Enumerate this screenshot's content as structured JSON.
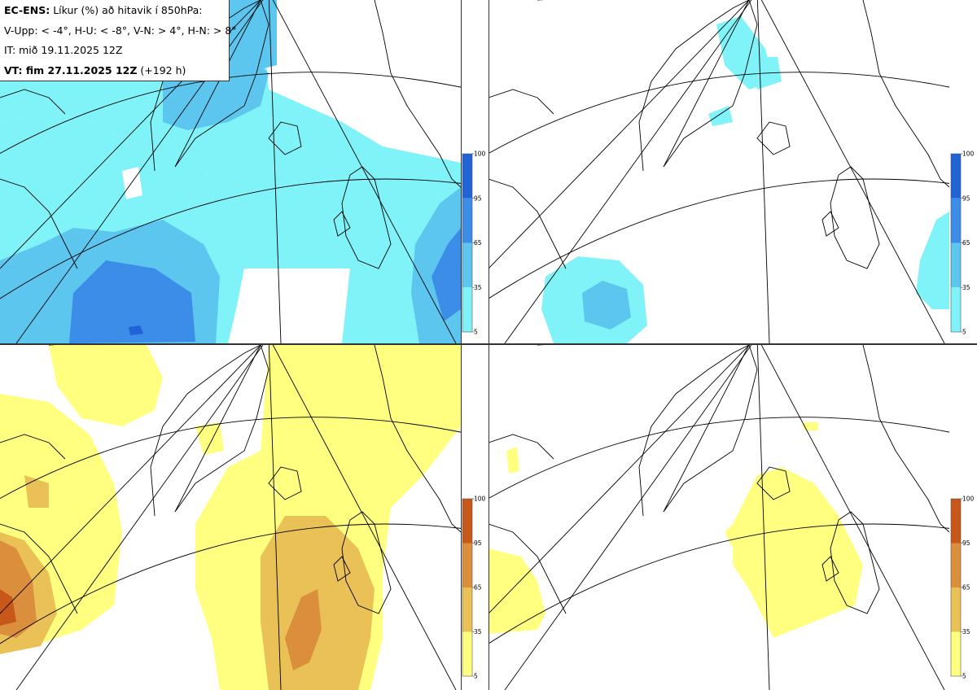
{
  "info": {
    "model": "EC-ENS:",
    "title_rest": "Líkur (%) að hitavik í 850hPa:",
    "thresholds": "V-Upp: < -4°, H-U: < -8°, V-N: > 4°, H-N: > 8°",
    "initial_time": "IT: mið 19.11.2025 12Z",
    "valid_label": "VT: fim 27.11.2025 12Z",
    "lead": "(+192 h)"
  },
  "legend_cold": {
    "ticks": [
      "100",
      "95",
      "65",
      "35",
      "5"
    ],
    "colors": [
      "#1f63d6",
      "#3b8de8",
      "#5cc6ef",
      "#7ff3f7"
    ]
  },
  "legend_warm": {
    "ticks": [
      "100",
      "95",
      "65",
      "35",
      "5"
    ],
    "colors": [
      "#c8571a",
      "#db8e3c",
      "#e9c156",
      "#ffff80"
    ]
  },
  "colors": {
    "cold_levels": [
      "#7ff3f7",
      "#5cc6ef",
      "#3b8de8",
      "#1f63d6"
    ],
    "warm_levels": [
      "#ffff80",
      "#e9c156",
      "#db8e3c",
      "#c8571a"
    ],
    "coast": "#000000",
    "grid": "#000000"
  },
  "panels": [
    {
      "id": "cold-minus-4",
      "palette": "cold"
    },
    {
      "id": "cold-minus-8",
      "palette": "cold"
    },
    {
      "id": "warm-plus-4",
      "palette": "warm"
    },
    {
      "id": "warm-plus-8",
      "palette": "warm"
    }
  ]
}
